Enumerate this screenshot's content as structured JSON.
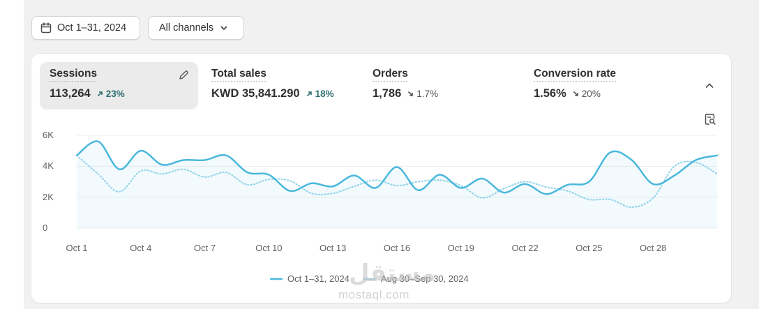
{
  "toolbar": {
    "date_label": "Oct 1–31, 2024",
    "channel_label": "All channels",
    "date_icon": "calendar-icon",
    "channel_icon": "chevron-down-icon"
  },
  "metrics": [
    {
      "label": "Sessions",
      "value": "113,264",
      "change": "23%",
      "direction": "up",
      "active": true
    },
    {
      "label": "Total sales",
      "value": "KWD 35,841.290",
      "change": "18%",
      "direction": "up",
      "active": false
    },
    {
      "label": "Orders",
      "value": "1,786",
      "change": "1.7%",
      "direction": "down",
      "active": false
    },
    {
      "label": "Conversion rate",
      "value": "1.56%",
      "change": "20%",
      "direction": "down",
      "active": false
    }
  ],
  "colors": {
    "primary_series": "#4ab8dc",
    "comparison_series": "#91d3ea",
    "change_up": "#2e6f72",
    "active_tab_bg": "#ebebeb"
  },
  "watermark": {
    "text": "mostaql.com",
    "arabic": "مستقل"
  },
  "chart_data": {
    "type": "line",
    "ylim": [
      0,
      6000
    ],
    "yticks": [
      {
        "value": 0,
        "label": "0"
      },
      {
        "value": 2000,
        "label": "2K"
      },
      {
        "value": 4000,
        "label": "4K"
      },
      {
        "value": 6000,
        "label": "6K"
      }
    ],
    "x_tick_labels": [
      {
        "day": 1,
        "label": "Oct 1"
      },
      {
        "day": 4,
        "label": "Oct 4"
      },
      {
        "day": 7,
        "label": "Oct 7"
      },
      {
        "day": 10,
        "label": "Oct 10"
      },
      {
        "day": 13,
        "label": "Oct 13"
      },
      {
        "day": 16,
        "label": "Oct 16"
      },
      {
        "day": 19,
        "label": "Oct 19"
      },
      {
        "day": 22,
        "label": "Oct 22"
      },
      {
        "day": 25,
        "label": "Oct 25"
      },
      {
        "day": 28,
        "label": "Oct 28"
      }
    ],
    "series": [
      {
        "name": "Oct 1–31, 2024",
        "style": "solid",
        "values": [
          4700,
          5600,
          3800,
          5000,
          4100,
          4400,
          4400,
          4700,
          3600,
          3450,
          2400,
          2900,
          2700,
          3400,
          2600,
          3950,
          2450,
          3450,
          2600,
          3200,
          2300,
          2850,
          2200,
          2800,
          3000,
          4900,
          4400,
          2850,
          3400,
          4400,
          4700
        ]
      },
      {
        "name": "Aug 30–Sep 30, 2024",
        "style": "dotted",
        "values": [
          4700,
          3500,
          2350,
          3700,
          3500,
          3800,
          3300,
          3600,
          2800,
          3150,
          3050,
          2250,
          2250,
          2700,
          3100,
          2750,
          3000,
          3100,
          2750,
          1950,
          2550,
          3000,
          2650,
          2400,
          1850,
          1850,
          1350,
          1950,
          4000,
          4250,
          3500
        ]
      }
    ],
    "legend_placement": "bottom-center"
  }
}
